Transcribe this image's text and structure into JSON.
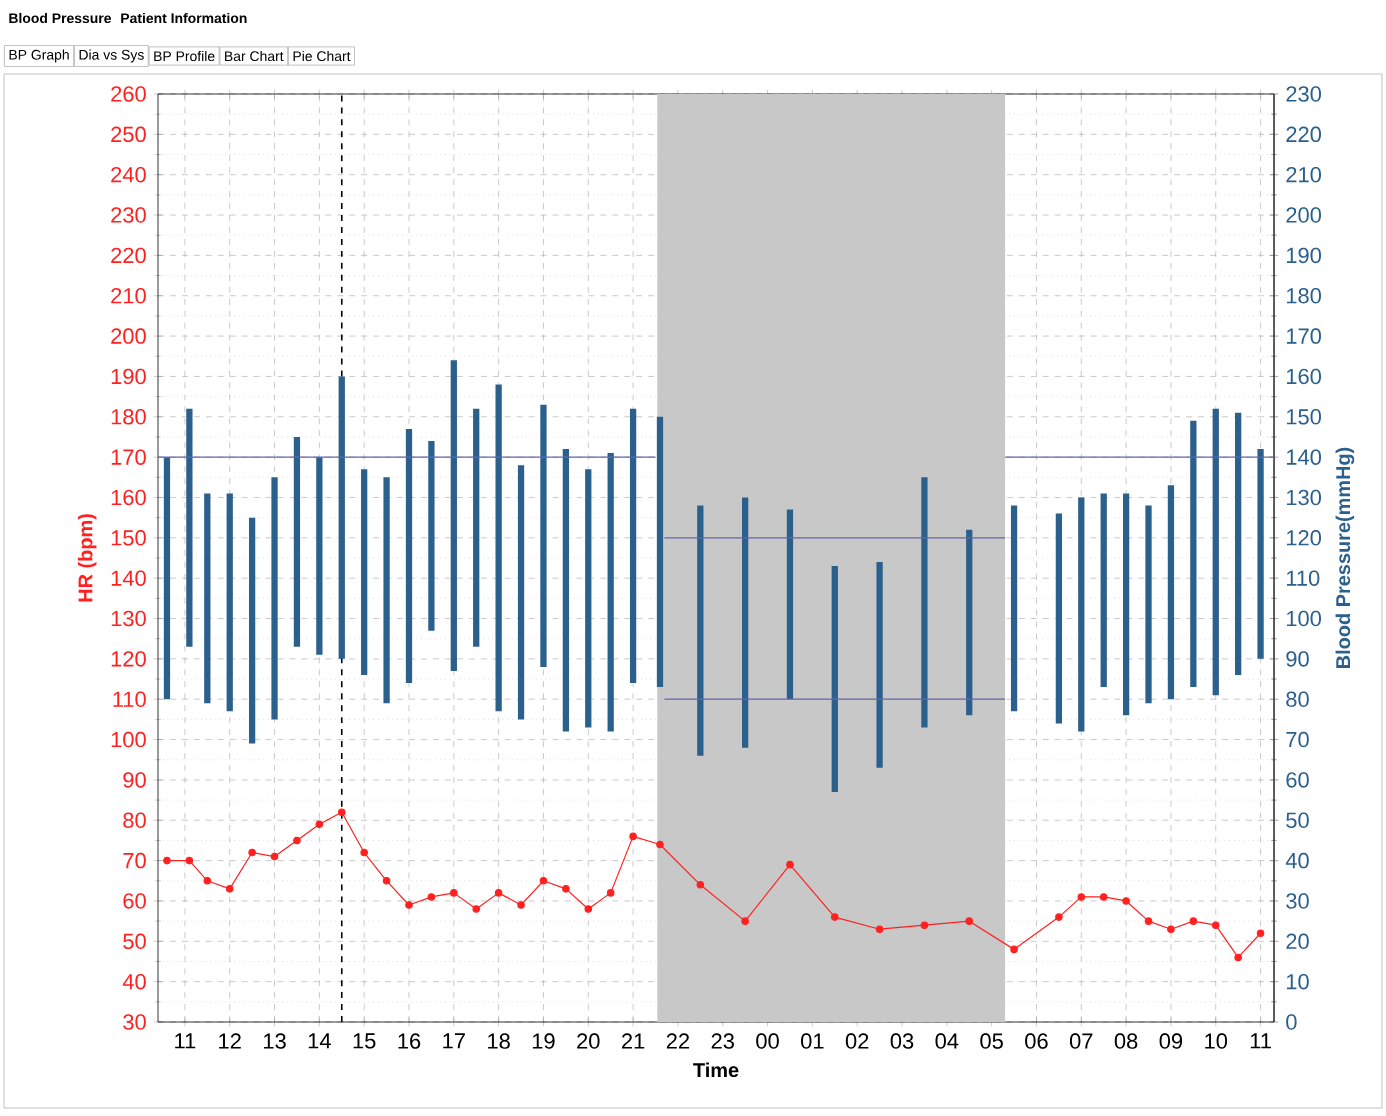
{
  "chart_data": {
    "type": "bar",
    "xlabel": "Time",
    "ylabel": "HR (bpm)",
    "y2label": "Blood Pressure(mmHg)",
    "annotations": [
      "Blood Pressure",
      "Patient Information",
      "BP Graph",
      "Dia vs Sys",
      "BP Profile",
      "Bar Chart",
      "Pie Chart"
    ],
    "xlim": [
      10.4,
      35.3
    ],
    "xticks": [
      {
        "value": 11,
        "label": "11"
      },
      {
        "value": 12,
        "label": "12"
      },
      {
        "value": 13,
        "label": "13"
      },
      {
        "value": 14,
        "label": "14"
      },
      {
        "value": 15,
        "label": "15"
      },
      {
        "value": 16,
        "label": "16"
      },
      {
        "value": 17,
        "label": "17"
      },
      {
        "value": 18,
        "label": "18"
      },
      {
        "value": 19,
        "label": "19"
      },
      {
        "value": 20,
        "label": "20"
      },
      {
        "value": 21,
        "label": "21"
      },
      {
        "value": 22,
        "label": "22"
      },
      {
        "value": 23,
        "label": "23"
      },
      {
        "value": 24,
        "label": "00"
      },
      {
        "value": 25,
        "label": "01"
      },
      {
        "value": 26,
        "label": "02"
      },
      {
        "value": 27,
        "label": "03"
      },
      {
        "value": 28,
        "label": "04"
      },
      {
        "value": 29,
        "label": "05"
      },
      {
        "value": 30,
        "label": "06"
      },
      {
        "value": 31,
        "label": "07"
      },
      {
        "value": 32,
        "label": "08"
      },
      {
        "value": 33,
        "label": "09"
      },
      {
        "value": 34,
        "label": "10"
      },
      {
        "value": 35,
        "label": "11"
      }
    ],
    "ylim": [
      30,
      260
    ],
    "yticks": [
      30,
      40,
      50,
      60,
      70,
      80,
      90,
      100,
      110,
      120,
      130,
      140,
      150,
      160,
      170,
      180,
      190,
      200,
      210,
      220,
      230,
      240,
      250,
      260
    ],
    "y2lim": [
      0,
      230
    ],
    "y2ticks": [
      0,
      10,
      20,
      30,
      40,
      50,
      60,
      70,
      80,
      90,
      100,
      110,
      120,
      130,
      140,
      150,
      160,
      170,
      180,
      190,
      200,
      210,
      220,
      230
    ],
    "grid": true,
    "bands": [
      {
        "axis": "x",
        "from": 21.54,
        "to": 29.3,
        "color": "#c8c8c8"
      }
    ],
    "ref_lines": [
      {
        "axis": "x",
        "value": 14.5,
        "color": "#000000",
        "line_style": "dashed"
      }
    ],
    "series": [
      {
        "axis": "y2",
        "color": "#2b5f8c",
        "x": [
          10.6,
          11.1,
          11.5,
          12,
          12.5,
          13,
          13.5,
          14,
          14.5,
          15,
          15.5,
          16,
          16.5,
          17,
          17.5,
          18,
          18.5,
          19,
          19.5,
          20,
          20.5,
          21,
          21.6,
          22.5,
          23.5,
          24.5,
          25.5,
          26.5,
          27.5,
          28.5,
          29.5,
          30.5,
          31,
          31.5,
          32,
          32.5,
          33,
          33.5,
          34,
          34.5,
          35
        ],
        "base": [
          80,
          93,
          79,
          77,
          69,
          75,
          93,
          91,
          90,
          86,
          79,
          84,
          97,
          87,
          93,
          77,
          75,
          88,
          72,
          73,
          72,
          84,
          83,
          66,
          68,
          80,
          57,
          63,
          73,
          76,
          77,
          74,
          72,
          83,
          76,
          79,
          80,
          83,
          81,
          86,
          90
        ],
        "values": [
          60,
          59,
          52,
          54,
          56,
          60,
          52,
          49,
          70,
          51,
          56,
          63,
          47,
          77,
          59,
          81,
          63,
          65,
          70,
          64,
          69,
          68,
          67,
          62,
          62,
          47,
          56,
          51,
          62,
          46,
          51,
          52,
          58,
          48,
          55,
          49,
          53,
          66,
          71,
          65,
          52
        ]
      },
      {
        "type": "line",
        "axis": "y",
        "color": "#ff2020",
        "marker": "circle",
        "x": [
          10.6,
          11.1,
          11.5,
          12,
          12.5,
          13,
          13.5,
          14,
          14.5,
          15,
          15.5,
          16,
          16.5,
          17,
          17.5,
          18,
          18.5,
          19,
          19.5,
          20,
          20.5,
          21,
          21.6,
          22.5,
          23.5,
          24.5,
          25.5,
          26.5,
          27.5,
          28.5,
          29.5,
          30.5,
          31,
          31.5,
          32,
          32.5,
          33,
          33.5,
          34,
          34.5,
          35
        ],
        "values": [
          70,
          70,
          65,
          63,
          72,
          71,
          75,
          79,
          82,
          72,
          65,
          59,
          61,
          62,
          58,
          62,
          59,
          65,
          63,
          58,
          62,
          76,
          74,
          64,
          55,
          69,
          56,
          53,
          54,
          55,
          48,
          56,
          61,
          61,
          60,
          55,
          53,
          55,
          54,
          46,
          52
        ]
      },
      {
        "type": "line",
        "axis": "y2",
        "color": "#6464a8",
        "x": [
          10.4,
          21.5
        ],
        "values": [
          140,
          140
        ]
      },
      {
        "type": "line",
        "axis": "y2",
        "color": "#6464a8",
        "x": [
          21.7,
          29.3
        ],
        "values": [
          120,
          120
        ]
      },
      {
        "type": "line",
        "axis": "y2",
        "color": "#6464a8",
        "x": [
          21.7,
          29.3
        ],
        "values": [
          80,
          80
        ]
      },
      {
        "type": "line",
        "axis": "y2",
        "color": "#6464a8",
        "x": [
          29.3,
          35.3
        ],
        "values": [
          140,
          140
        ]
      }
    ]
  }
}
